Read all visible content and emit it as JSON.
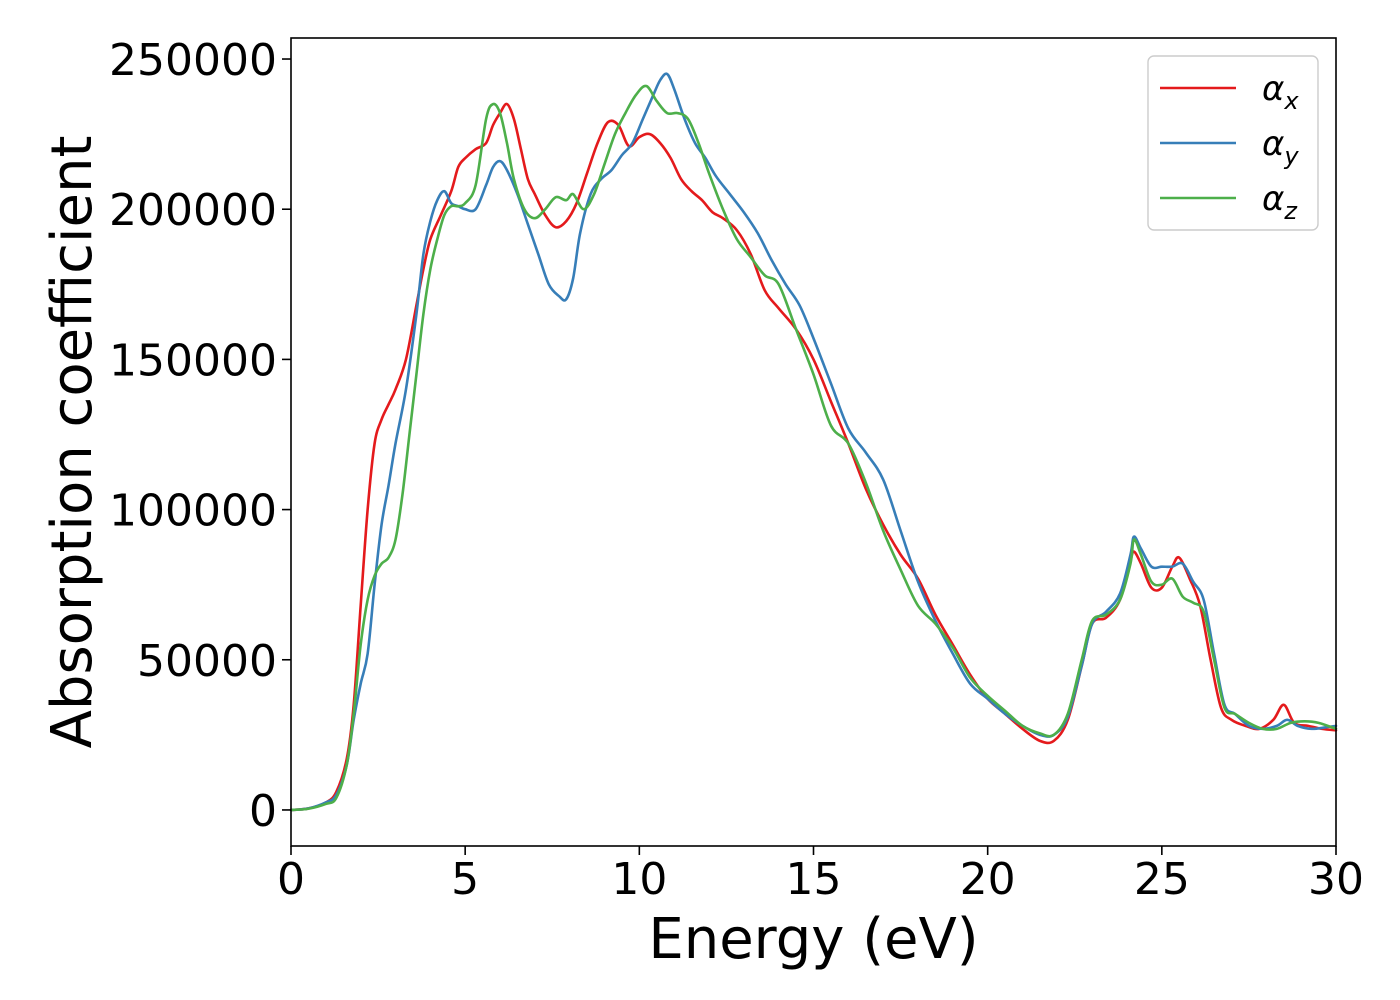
{
  "chart_data": {
    "type": "line",
    "title": "",
    "xlabel": "Energy (eV)",
    "ylabel": "Absorption coefficient",
    "xlim": [
      0,
      30
    ],
    "ylim": [
      -12000,
      257000
    ],
    "xticks": [
      0,
      5,
      10,
      15,
      20,
      25,
      30
    ],
    "yticks": [
      0,
      50000,
      100000,
      150000,
      200000,
      250000
    ],
    "grid": false,
    "legend_position": "top-right",
    "series": [
      {
        "name": "α_x",
        "legend_main": "α",
        "legend_sub": "x",
        "color": "#e41a1c",
        "x": [
          0,
          0.5,
          1.0,
          1.3,
          1.6,
          1.8,
          2.0,
          2.2,
          2.4,
          2.6,
          2.8,
          3.0,
          3.3,
          3.6,
          3.8,
          4.0,
          4.3,
          4.6,
          4.8,
          5.0,
          5.3,
          5.6,
          5.8,
          6.0,
          6.2,
          6.4,
          6.6,
          6.8,
          7.0,
          7.3,
          7.6,
          7.9,
          8.2,
          8.5,
          8.8,
          9.1,
          9.4,
          9.7,
          10.0,
          10.3,
          10.6,
          10.9,
          11.2,
          11.5,
          11.8,
          12.1,
          12.4,
          12.8,
          13.2,
          13.6,
          14.0,
          14.5,
          15.0,
          15.5,
          16.0,
          16.5,
          17.0,
          17.5,
          18.0,
          18.5,
          19.0,
          19.5,
          20.0,
          20.5,
          21.0,
          21.5,
          21.9,
          22.3,
          22.7,
          23.0,
          23.4,
          23.8,
          24.1,
          24.2,
          24.4,
          24.7,
          25.0,
          25.3,
          25.5,
          25.8,
          26.1,
          26.4,
          26.7,
          27.0,
          27.4,
          27.8,
          28.2,
          28.5,
          28.8,
          29.2,
          29.6,
          30.0
        ],
        "y": [
          0,
          500,
          2500,
          6000,
          17000,
          35000,
          68000,
          100000,
          122000,
          130000,
          135000,
          140000,
          150000,
          168000,
          180000,
          190000,
          198000,
          206000,
          214000,
          217000,
          220000,
          222000,
          228000,
          232000,
          235000,
          230000,
          220000,
          210000,
          205000,
          198000,
          194000,
          196000,
          202000,
          212000,
          222000,
          229000,
          228000,
          221000,
          224000,
          225000,
          222000,
          217000,
          210000,
          206000,
          203000,
          199000,
          197000,
          193000,
          185000,
          173000,
          167000,
          160000,
          150000,
          136000,
          122000,
          107000,
          95000,
          85000,
          77000,
          65000,
          55000,
          45000,
          37000,
          32000,
          27000,
          23000,
          23000,
          30000,
          48000,
          62000,
          64000,
          70000,
          83000,
          86000,
          82000,
          74000,
          74000,
          81000,
          84000,
          77000,
          68000,
          50000,
          34000,
          30000,
          28000,
          27000,
          30000,
          35000,
          29000,
          28000,
          27000,
          26500
        ]
      },
      {
        "name": "α_y",
        "legend_main": "α",
        "legend_sub": "y",
        "color": "#377eb8",
        "x": [
          0,
          0.5,
          1.0,
          1.3,
          1.6,
          1.8,
          2.0,
          2.2,
          2.4,
          2.6,
          2.8,
          3.0,
          3.3,
          3.6,
          3.8,
          4.0,
          4.2,
          4.4,
          4.6,
          4.8,
          5.0,
          5.3,
          5.6,
          5.8,
          6.0,
          6.2,
          6.5,
          6.8,
          7.1,
          7.4,
          7.7,
          7.9,
          8.1,
          8.3,
          8.6,
          8.9,
          9.2,
          9.5,
          9.8,
          10.1,
          10.4,
          10.6,
          10.8,
          11.0,
          11.3,
          11.6,
          11.9,
          12.2,
          12.6,
          13.0,
          13.4,
          13.8,
          14.2,
          14.6,
          15.0,
          15.5,
          16.0,
          16.5,
          17.0,
          17.5,
          18.0,
          18.5,
          19.0,
          19.5,
          20.0,
          20.5,
          21.0,
          21.5,
          21.9,
          22.3,
          22.7,
          23.0,
          23.4,
          23.8,
          24.1,
          24.2,
          24.4,
          24.7,
          25.0,
          25.3,
          25.6,
          25.9,
          26.2,
          26.5,
          26.8,
          27.1,
          27.5,
          27.9,
          28.3,
          28.6,
          28.9,
          29.3,
          29.7,
          30.0
        ],
        "y": [
          0,
          500,
          2500,
          5000,
          15000,
          30000,
          42000,
          52000,
          75000,
          95000,
          108000,
          122000,
          140000,
          165000,
          185000,
          196000,
          203000,
          206000,
          202000,
          201000,
          200000,
          200000,
          208000,
          214000,
          216000,
          213000,
          205000,
          195000,
          185000,
          175000,
          171000,
          170000,
          177000,
          192000,
          205000,
          210000,
          213000,
          218000,
          222000,
          230000,
          238000,
          243000,
          245000,
          240000,
          230000,
          222000,
          217000,
          211000,
          205000,
          199000,
          192000,
          183000,
          175000,
          168000,
          157000,
          142000,
          127000,
          119000,
          110000,
          93000,
          76000,
          63000,
          52000,
          42000,
          37000,
          32000,
          28000,
          25000,
          25000,
          31000,
          48000,
          62000,
          66000,
          72000,
          85000,
          91000,
          87000,
          81000,
          81000,
          81000,
          82000,
          76000,
          70000,
          52000,
          35000,
          32000,
          28000,
          27000,
          28000,
          30000,
          28000,
          27000,
          27500,
          28000
        ]
      },
      {
        "name": "α_z",
        "legend_main": "α",
        "legend_sub": "z",
        "color": "#4daf4a",
        "x": [
          0,
          0.5,
          1.0,
          1.3,
          1.6,
          1.8,
          2.0,
          2.2,
          2.4,
          2.6,
          2.8,
          3.0,
          3.2,
          3.4,
          3.6,
          3.8,
          4.0,
          4.2,
          4.4,
          4.6,
          4.8,
          5.0,
          5.3,
          5.6,
          5.8,
          6.0,
          6.2,
          6.4,
          6.7,
          7.0,
          7.3,
          7.6,
          7.9,
          8.1,
          8.4,
          8.7,
          9.0,
          9.3,
          9.6,
          9.9,
          10.2,
          10.5,
          10.8,
          11.1,
          11.4,
          11.7,
          12.0,
          12.4,
          12.8,
          13.2,
          13.6,
          14.0,
          14.5,
          15.0,
          15.5,
          16.0,
          16.5,
          17.0,
          17.5,
          18.0,
          18.5,
          19.0,
          19.5,
          20.0,
          20.5,
          21.0,
          21.5,
          21.9,
          22.3,
          22.7,
          23.0,
          23.4,
          23.8,
          24.1,
          24.2,
          24.4,
          24.7,
          25.0,
          25.3,
          25.6,
          25.9,
          26.2,
          26.5,
          26.8,
          27.1,
          27.5,
          27.9,
          28.3,
          28.7,
          29.1,
          29.5,
          30.0
        ],
        "y": [
          0,
          400,
          2000,
          4000,
          15000,
          32000,
          55000,
          70000,
          78000,
          82000,
          84000,
          90000,
          105000,
          125000,
          145000,
          165000,
          180000,
          190000,
          198000,
          201000,
          201000,
          202000,
          208000,
          230000,
          235000,
          232000,
          222000,
          210000,
          200000,
          197000,
          200000,
          204000,
          203000,
          205000,
          200000,
          205000,
          215000,
          225000,
          232000,
          238000,
          241000,
          236000,
          232000,
          232000,
          230000,
          222000,
          212000,
          200000,
          190000,
          184000,
          178000,
          175000,
          160000,
          145000,
          128000,
          122000,
          109000,
          93000,
          80000,
          68000,
          62000,
          54000,
          44000,
          38000,
          33000,
          28000,
          25500,
          25000,
          32000,
          50000,
          63000,
          65000,
          70000,
          82000,
          90000,
          85000,
          76000,
          75000,
          77000,
          71000,
          69000,
          66000,
          50000,
          34000,
          32000,
          29000,
          27000,
          27000,
          29000,
          29500,
          29000,
          27000
        ]
      }
    ]
  }
}
